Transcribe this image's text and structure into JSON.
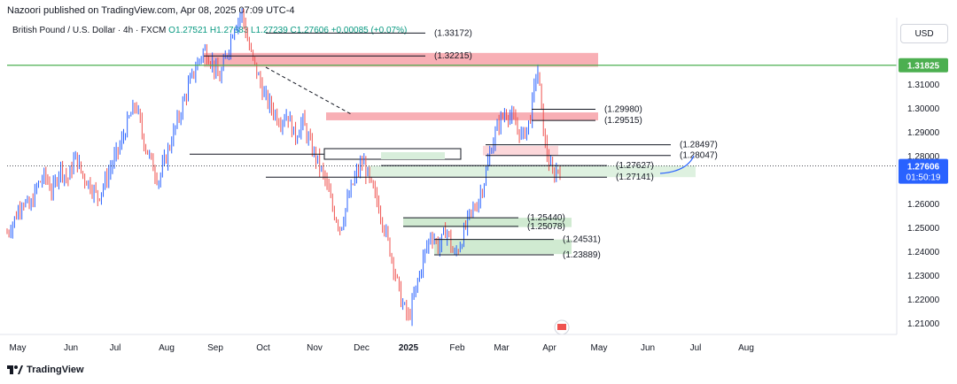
{
  "header": {
    "publisher": "Nazoori published on TradingView.com, Apr 08, 2025 07:09 UTC-4"
  },
  "symbol": {
    "name": "British Pound / U.S. Dollar · 4h · FXCM",
    "open": "O1.27521",
    "high": "H1.27683",
    "low": "L1.27239",
    "close": "C1.27606",
    "change": "+0.00085 (+0.07%)",
    "up_color": "#089981"
  },
  "currency_button": "USD",
  "footer": {
    "logo_icon": "tradingview-logo-icon",
    "brand": "TradingView"
  },
  "chart_data": {
    "type": "candlestick",
    "y_ticks": [
      "1.21000",
      "1.22000",
      "1.23000",
      "1.24000",
      "1.25000",
      "1.26000",
      "1.27000",
      "1.28000",
      "1.29000",
      "1.30000",
      "1.31000"
    ],
    "y_tick_values": [
      1.21,
      1.22,
      1.23,
      1.24,
      1.25,
      1.26,
      1.27,
      1.28,
      1.29,
      1.3,
      1.31
    ],
    "x_ticks": [
      "May",
      "Jun",
      "Jul",
      "Aug",
      "Sep",
      "Oct",
      "Nov",
      "Dec",
      "2025",
      "Feb",
      "Mar",
      "Apr",
      "May",
      "Jun",
      "Jul",
      "Aug"
    ],
    "ylim": [
      1.205,
      1.34
    ],
    "price_labels": {
      "green_line": {
        "text": "1.31825",
        "value": 1.31825,
        "color": "#4caf50"
      },
      "current": {
        "text": "1.27606",
        "value": 1.27606,
        "color": "#2962ff"
      },
      "countdown": "01:50:19"
    },
    "levels": [
      {
        "text": "(1.33172)",
        "value": 1.33172
      },
      {
        "text": "(1.32215)",
        "value": 1.32215
      },
      {
        "text": "(1.29980)",
        "value": 1.2998
      },
      {
        "text": "(1.29515)",
        "value": 1.29515
      },
      {
        "text": "(1.28497)",
        "value": 1.28497
      },
      {
        "text": "(1.28047)",
        "value": 1.28047
      },
      {
        "text": "(1.27627)",
        "value": 1.27627
      },
      {
        "text": "(1.27141)",
        "value": 1.27141
      },
      {
        "text": "(1.25440)",
        "value": 1.2544
      },
      {
        "text": "(1.25078)",
        "value": 1.25078
      },
      {
        "text": "(1.24531)",
        "value": 1.24531
      },
      {
        "text": "(1.23889)",
        "value": 1.23889
      }
    ],
    "zones": [
      {
        "kind": "supply",
        "from": 1.3176,
        "to": 1.3234,
        "color": "#f7a1a8"
      },
      {
        "kind": "supply",
        "from": 1.2952,
        "to": 1.2985,
        "color": "#f7a1a8"
      },
      {
        "kind": "supply",
        "from": 1.2805,
        "to": 1.2845,
        "color": "#fbd0d4"
      },
      {
        "kind": "demand",
        "from": 1.2714,
        "to": 1.2762,
        "color": "#d8eedb"
      },
      {
        "kind": "demand",
        "from": 1.2505,
        "to": 1.2544,
        "color": "#c8e6c9"
      },
      {
        "kind": "demand",
        "from": 1.2392,
        "to": 1.2453,
        "color": "#c8e6c9"
      }
    ],
    "price_path": [
      [
        1.248,
        1.254,
        1.262,
        1.258,
        1.268,
        1.272,
        1.265,
        1.276,
        1.27,
        1.28,
        1.272,
        1.268,
        1.263,
        1.27,
        1.278,
        1.285,
        1.295,
        1.302,
        1.287,
        1.278,
        1.27,
        1.28,
        1.29,
        1.3,
        1.31,
        1.318,
        1.325,
        1.32,
        1.312,
        1.323,
        1.335,
        1.34,
        1.325,
        1.315,
        1.305,
        1.3,
        1.295,
        1.298,
        1.288,
        1.295,
        1.285,
        1.278,
        1.27,
        1.258,
        1.25,
        1.262,
        1.272,
        1.278,
        1.268,
        1.26,
        1.248,
        1.235,
        1.22,
        1.212,
        1.225,
        1.238,
        1.248,
        1.242,
        1.25,
        1.238,
        1.245,
        1.255,
        1.26,
        1.27,
        1.285,
        1.295,
        1.299,
        1.294,
        1.288,
        1.295,
        1.318,
        1.285,
        1.272,
        1.276
      ]
    ]
  }
}
